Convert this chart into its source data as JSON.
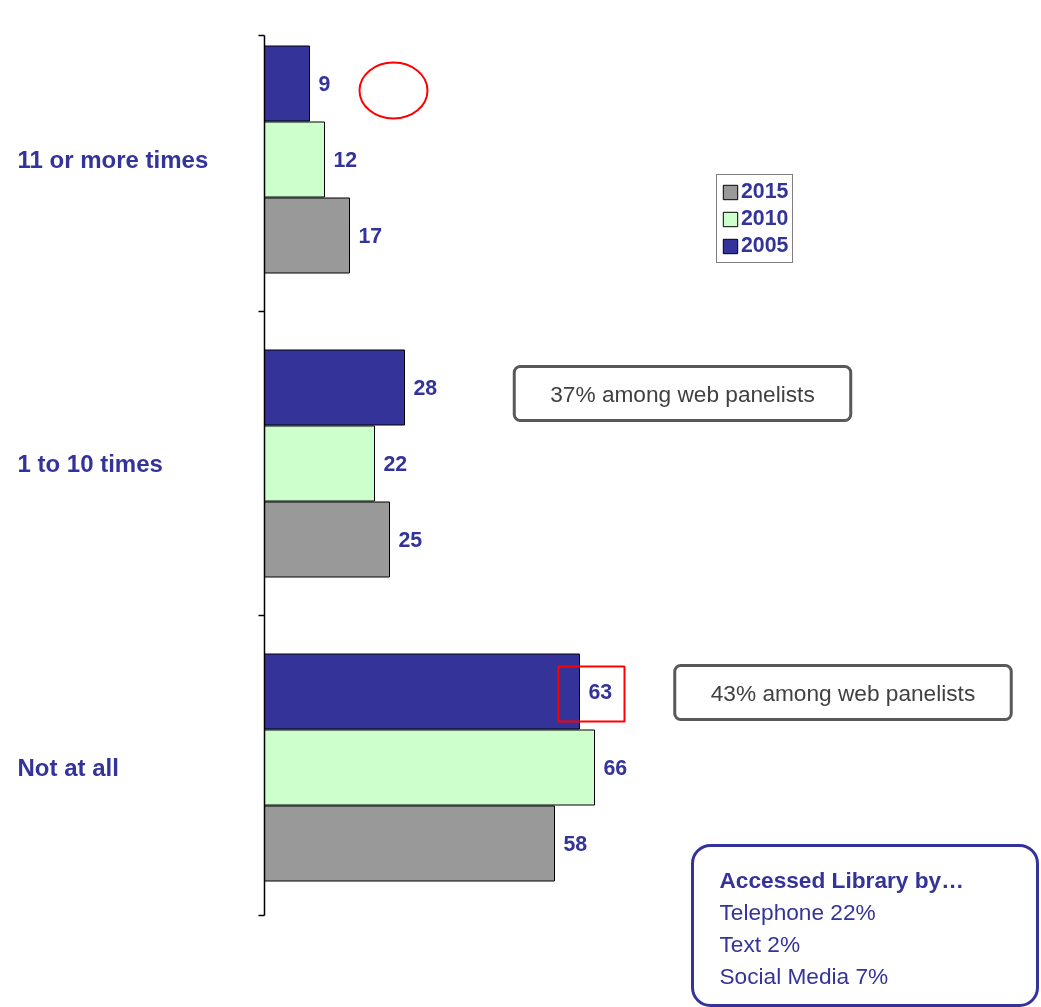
{
  "chart_data": {
    "type": "bar",
    "orientation": "horizontal",
    "categories": [
      "11 or more times",
      "1 to 10 times",
      "Not at all"
    ],
    "series": [
      {
        "name": "2005",
        "color": "#333399",
        "values": [
          9,
          28,
          63
        ]
      },
      {
        "name": "2010",
        "color": "#ccffcc",
        "values": [
          12,
          22,
          66
        ]
      },
      {
        "name": "2015",
        "color": "#999999",
        "values": [
          17,
          25,
          58
        ]
      }
    ],
    "data_labels": true,
    "legend": "top right",
    "grid": false,
    "annotations": [
      "37% among web panelists",
      "43% among web panelists",
      "Accessed Library by…",
      "Telephone      22%",
      "Text      2%",
      "Social Media      7%"
    ]
  }
}
